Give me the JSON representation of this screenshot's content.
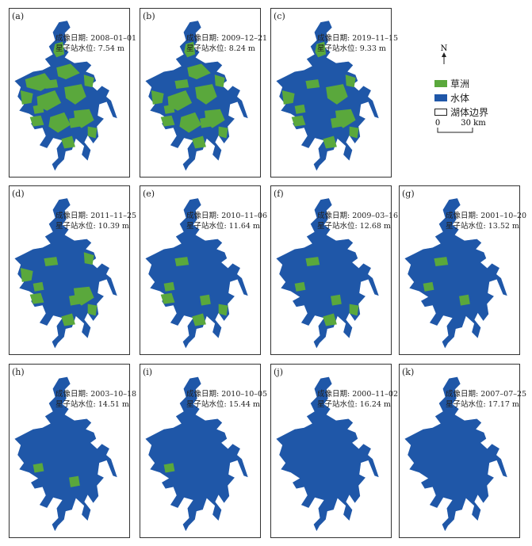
{
  "panels": [
    {
      "label": "(a)",
      "date_text": "成像日期: 2008–01–01",
      "level_text": "星子站水位: 7.54 m",
      "water_level_m": 7.54
    },
    {
      "label": "(b)",
      "date_text": "成像日期: 2009–12–21",
      "level_text": "星子站水位: 8.24 m",
      "water_level_m": 8.24
    },
    {
      "label": "(c)",
      "date_text": "成像日期: 2019–11–15",
      "level_text": "星子站水位: 9.33 m",
      "water_level_m": 9.33
    },
    {
      "label": "(d)",
      "date_text": "成像日期: 2011–11–25",
      "level_text": "星子站水位: 10.39 m",
      "water_level_m": 10.39
    },
    {
      "label": "(e)",
      "date_text": "成像日期: 2010–11–06",
      "level_text": "星子站水位: 11.64 m",
      "water_level_m": 11.64
    },
    {
      "label": "(f)",
      "date_text": "成像日期: 2009–03–16",
      "level_text": "星子站水位: 12.68 m",
      "water_level_m": 12.68
    },
    {
      "label": "(g)",
      "date_text": "成像日期: 2001–10–20",
      "level_text": "星子站水位: 13.52 m",
      "water_level_m": 13.52
    },
    {
      "label": "(h)",
      "date_text": "成像日期: 2003–10–18",
      "level_text": "星子站水位: 14.51 m",
      "water_level_m": 14.51
    },
    {
      "label": "(i)",
      "date_text": "成像日期: 2010–10–05",
      "level_text": "星子站水位: 15.44 m",
      "water_level_m": 15.44
    },
    {
      "label": "(j)",
      "date_text": "成像日期: 2000–11–02",
      "level_text": "星子站水位: 16.24 m",
      "water_level_m": 16.24
    },
    {
      "label": "(k)",
      "date_text": "成像日期: 2007–07–25",
      "level_text": "星子站水位: 17.17 m",
      "water_level_m": 17.17
    }
  ],
  "legend": {
    "north_label": "N",
    "grass_label": "草洲",
    "water_label": "水体",
    "boundary_label": "湖体边界",
    "scale_zero": "0",
    "scale_max": "30 km"
  },
  "colors": {
    "grass": "#5aa83c",
    "water": "#1f57a8",
    "boundary": "#ffffff",
    "frame": "#333333"
  }
}
